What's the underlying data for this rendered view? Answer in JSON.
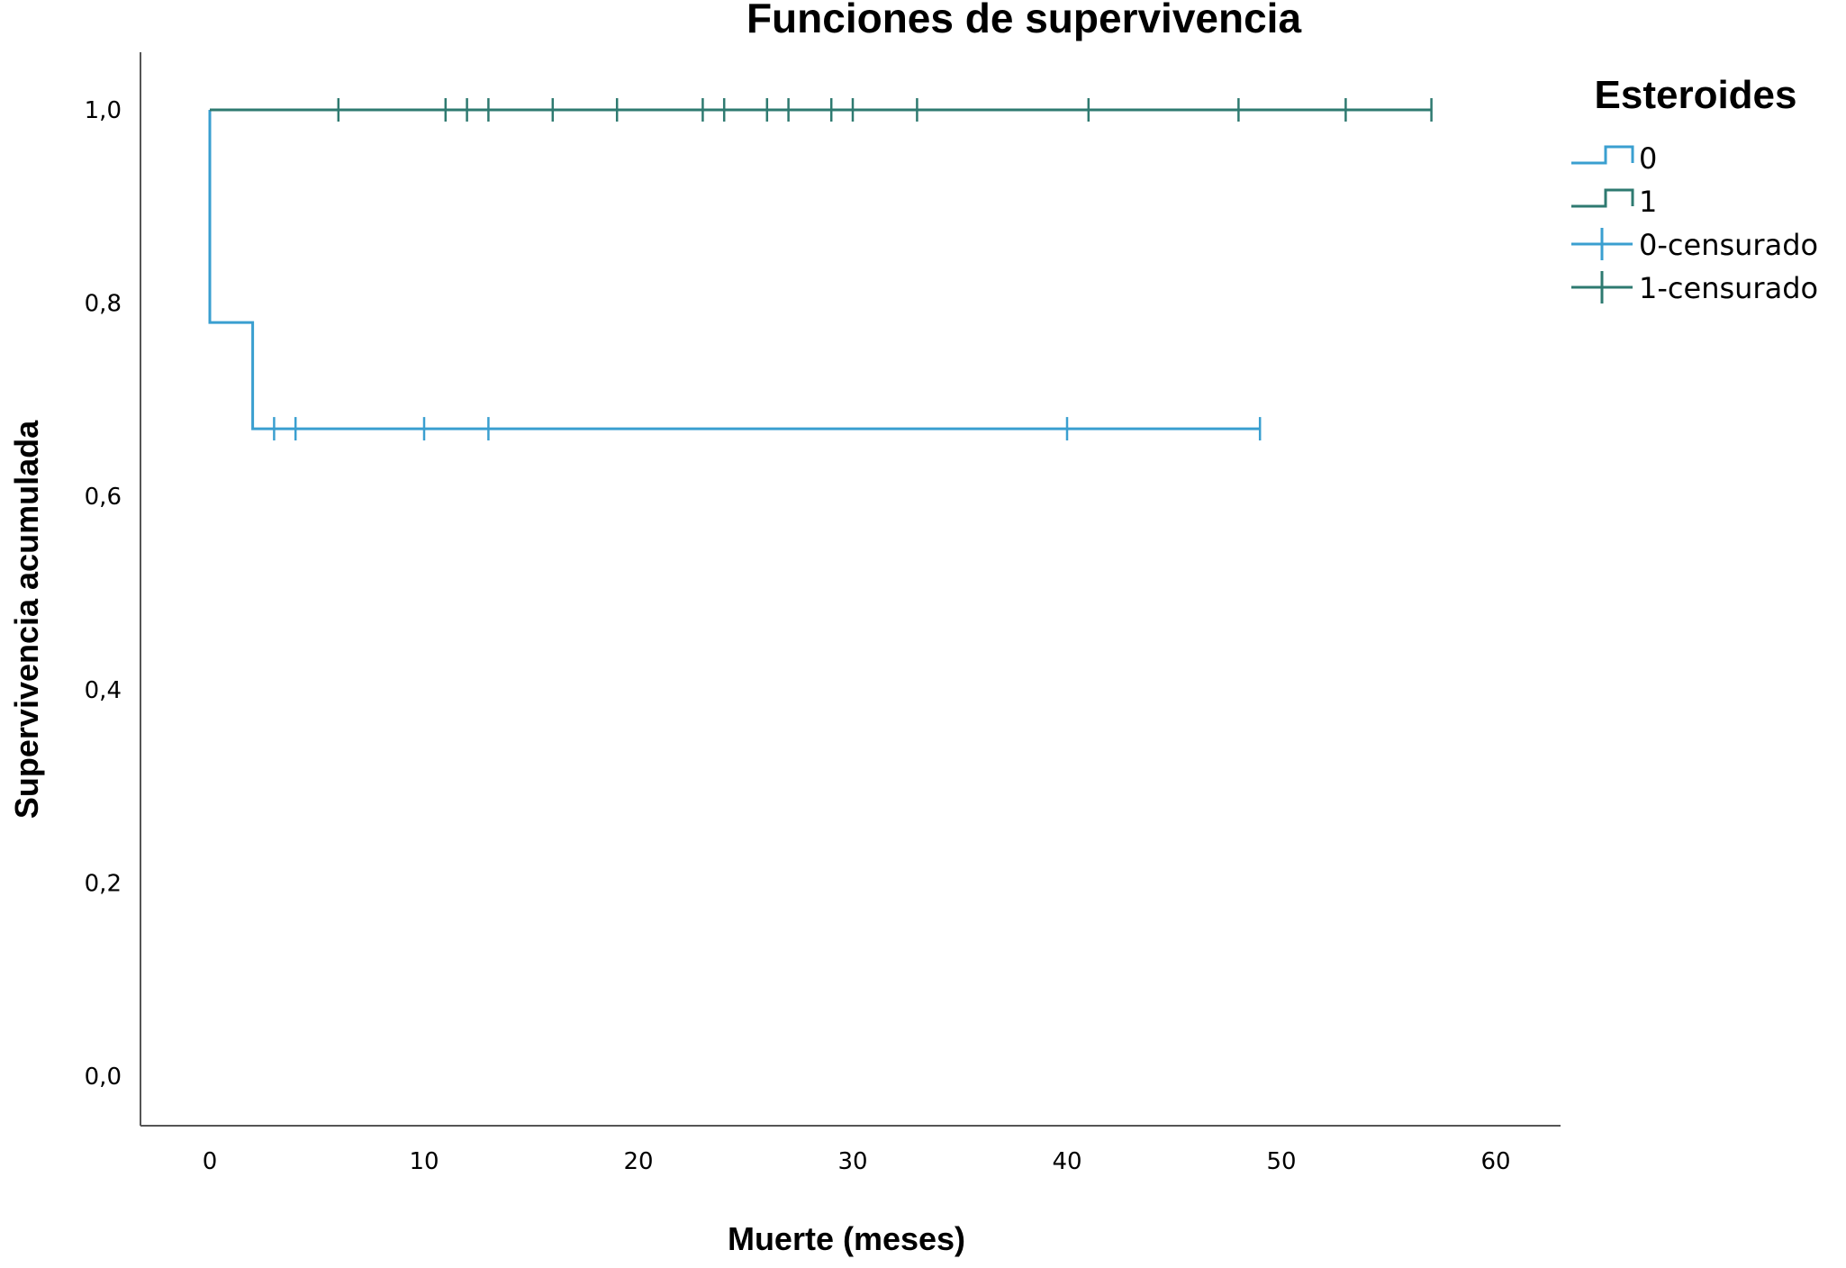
{
  "chart_data": {
    "type": "line",
    "subtype": "kaplan-meier step",
    "title": "Funciones de supervivencia",
    "xlabel": "Muerte (meses)",
    "ylabel": "Supervivencia acumulada",
    "xlim": [
      -3,
      63
    ],
    "ylim": [
      -0.05,
      1.06
    ],
    "x_ticks": [
      0,
      10,
      20,
      30,
      40,
      50,
      60
    ],
    "x_tick_labels": [
      "0",
      "10",
      "20",
      "30",
      "40",
      "50",
      "60"
    ],
    "y_ticks": [
      0.0,
      0.2,
      0.4,
      0.6,
      0.8,
      1.0
    ],
    "y_tick_labels": [
      "0,0",
      "0,2",
      "0,4",
      "0,6",
      "0,8",
      "1,0"
    ],
    "grid": false,
    "legend": {
      "title": "Esteroides",
      "position": "top-right"
    },
    "series": [
      {
        "name": "0",
        "censored_name": "0-censurado",
        "color": "#3a9fd0",
        "steps": [
          [
            0,
            1.0
          ],
          [
            0,
            0.78
          ],
          [
            2,
            0.78
          ],
          [
            2,
            0.67
          ],
          [
            49,
            0.67
          ]
        ],
        "censored": [
          [
            3,
            0.67
          ],
          [
            4,
            0.67
          ],
          [
            10,
            0.67
          ],
          [
            13,
            0.67
          ],
          [
            40,
            0.67
          ],
          [
            49,
            0.67
          ]
        ]
      },
      {
        "name": "1",
        "censored_name": "1-censurado",
        "color": "#2e7a70",
        "steps": [
          [
            0,
            1.0
          ],
          [
            57,
            1.0
          ]
        ],
        "censored": [
          [
            6,
            1.0
          ],
          [
            11,
            1.0
          ],
          [
            12,
            1.0
          ],
          [
            13,
            1.0
          ],
          [
            16,
            1.0
          ],
          [
            19,
            1.0
          ],
          [
            23,
            1.0
          ],
          [
            24,
            1.0
          ],
          [
            26,
            1.0
          ],
          [
            27,
            1.0
          ],
          [
            29,
            1.0
          ],
          [
            30,
            1.0
          ],
          [
            33,
            1.0
          ],
          [
            41,
            1.0
          ],
          [
            48,
            1.0
          ],
          [
            53,
            1.0
          ],
          [
            57,
            1.0
          ]
        ]
      }
    ]
  }
}
